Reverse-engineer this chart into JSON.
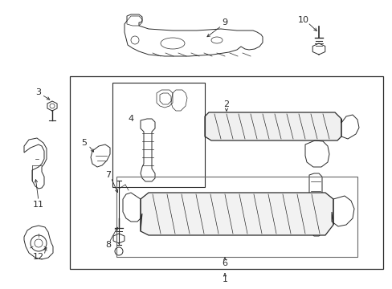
{
  "bg_color": "#ffffff",
  "line_color": "#2a2a2a",
  "figsize": [
    4.89,
    3.6
  ],
  "dpi": 100,
  "lw_main": 0.9,
  "lw_thin": 0.5,
  "lw_med": 0.7,
  "fontsize": 7.5
}
